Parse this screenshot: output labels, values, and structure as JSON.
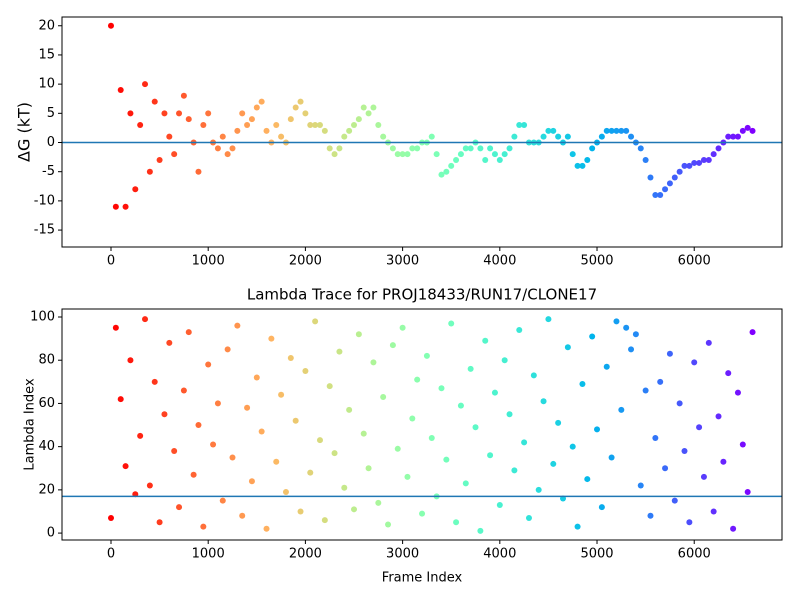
{
  "chart_data": [
    {
      "type": "scatter",
      "ylabel": "ΔG (kT)",
      "colormap": "rainbow_r",
      "x": [
        0,
        50,
        100,
        150,
        200,
        250,
        300,
        350,
        400,
        450,
        500,
        550,
        600,
        650,
        700,
        750,
        800,
        850,
        900,
        950,
        1000,
        1050,
        1100,
        1150,
        1200,
        1250,
        1300,
        1350,
        1400,
        1450,
        1500,
        1550,
        1600,
        1650,
        1700,
        1750,
        1800,
        1850,
        1900,
        1950,
        2000,
        2050,
        2100,
        2150,
        2200,
        2250,
        2300,
        2350,
        2400,
        2450,
        2500,
        2550,
        2600,
        2650,
        2700,
        2750,
        2800,
        2850,
        2900,
        2950,
        3000,
        3050,
        3100,
        3150,
        3200,
        3250,
        3300,
        3350,
        3400,
        3450,
        3500,
        3550,
        3600,
        3650,
        3700,
        3750,
        3800,
        3850,
        3900,
        3950,
        4000,
        4050,
        4100,
        4150,
        4200,
        4250,
        4300,
        4350,
        4400,
        4450,
        4500,
        4550,
        4600,
        4650,
        4700,
        4750,
        4800,
        4850,
        4900,
        4950,
        5000,
        5050,
        5100,
        5150,
        5200,
        5250,
        5300,
        5350,
        5400,
        5450,
        5500,
        5550,
        5600,
        5650,
        5700,
        5750,
        5800,
        5850,
        5900,
        5950,
        6000,
        6050,
        6100,
        6150,
        6200,
        6250,
        6300,
        6350,
        6400,
        6450,
        6500,
        6550,
        6600
      ],
      "values": [
        20,
        -11,
        9,
        -11,
        5,
        -8,
        3,
        10,
        -5,
        7,
        -3,
        5,
        1,
        -2,
        5,
        8,
        4,
        0,
        -5,
        3,
        5,
        0,
        -1,
        1,
        -2,
        -1,
        2,
        5,
        3,
        4,
        6,
        7,
        2,
        0,
        3,
        1,
        0,
        4,
        6,
        7,
        5,
        3,
        3,
        3,
        2,
        -1,
        -2,
        -1,
        1,
        2,
        3,
        4,
        6,
        5,
        6,
        3,
        1,
        0,
        -1,
        -2,
        -2,
        -2,
        -1,
        -1,
        0,
        0,
        1,
        -2,
        -5.5,
        -5,
        -4,
        -3,
        -2,
        -1,
        -1,
        0,
        -1,
        -3,
        -1,
        -2,
        -3,
        -2,
        -1,
        1,
        3,
        3,
        0,
        0,
        0,
        1,
        2,
        2,
        1,
        0,
        1,
        -2,
        -4,
        -4,
        -3,
        -1,
        0,
        1,
        2,
        2,
        2,
        2,
        2,
        1,
        0,
        -1,
        -3,
        -6,
        -9,
        -9,
        -8,
        -7,
        -6,
        -5,
        -4,
        -4,
        -3.5,
        -3.5,
        -3,
        -3,
        -2,
        -1,
        0,
        1,
        1,
        1,
        2,
        2.5,
        2
      ],
      "hline": 0,
      "hline_color": "#1f77b4",
      "xlim": [
        -504,
        6903
      ],
      "ylim": [
        -17.9,
        21.5
      ],
      "xticks": [
        0,
        1000,
        2000,
        3000,
        4000,
        5000,
        6000
      ],
      "yticks": [
        -15,
        -10,
        -5,
        0,
        5,
        10,
        15,
        20
      ]
    },
    {
      "type": "scatter",
      "title": "Lambda Trace for PROJ18433/RUN17/CLONE17",
      "xlabel": "Frame Index",
      "ylabel": "Lambda Index",
      "colormap": "rainbow_r",
      "x": [
        0,
        50,
        100,
        150,
        200,
        250,
        300,
        350,
        400,
        450,
        500,
        550,
        600,
        650,
        700,
        750,
        800,
        850,
        900,
        950,
        1000,
        1050,
        1100,
        1150,
        1200,
        1250,
        1300,
        1350,
        1400,
        1450,
        1500,
        1550,
        1600,
        1650,
        1700,
        1750,
        1800,
        1850,
        1900,
        1950,
        2000,
        2050,
        2100,
        2150,
        2200,
        2250,
        2300,
        2350,
        2400,
        2450,
        2500,
        2550,
        2600,
        2650,
        2700,
        2750,
        2800,
        2850,
        2900,
        2950,
        3000,
        3050,
        3100,
        3150,
        3200,
        3250,
        3300,
        3350,
        3400,
        3450,
        3500,
        3550,
        3600,
        3650,
        3700,
        3750,
        3800,
        3850,
        3900,
        3950,
        4000,
        4050,
        4100,
        4150,
        4200,
        4250,
        4300,
        4350,
        4400,
        4450,
        4500,
        4550,
        4600,
        4650,
        4700,
        4750,
        4800,
        4850,
        4900,
        4950,
        5000,
        5050,
        5100,
        5150,
        5200,
        5250,
        5300,
        5350,
        5400,
        5450,
        5500,
        5550,
        5600,
        5650,
        5700,
        5750,
        5800,
        5850,
        5900,
        5950,
        6000,
        6050,
        6100,
        6150,
        6200,
        6250,
        6300,
        6350,
        6400,
        6450,
        6500,
        6550,
        6600
      ],
      "values": [
        7,
        95,
        62,
        31,
        80,
        18,
        45,
        99,
        22,
        70,
        5,
        55,
        88,
        38,
        12,
        66,
        93,
        27,
        50,
        3,
        78,
        41,
        60,
        15,
        85,
        35,
        96,
        8,
        58,
        24,
        72,
        47,
        2,
        90,
        33,
        64,
        19,
        81,
        52,
        10,
        75,
        28,
        98,
        43,
        6,
        68,
        37,
        84,
        21,
        57,
        11,
        92,
        46,
        30,
        79,
        14,
        63,
        4,
        87,
        39,
        95,
        26,
        53,
        71,
        9,
        82,
        44,
        17,
        67,
        34,
        97,
        5,
        59,
        23,
        76,
        49,
        1,
        89,
        36,
        65,
        13,
        80,
        55,
        29,
        94,
        42,
        7,
        73,
        20,
        61,
        99,
        32,
        51,
        16,
        86,
        40,
        3,
        69,
        25,
        91,
        48,
        12,
        77,
        35,
        98,
        57,
        95,
        85,
        92,
        22,
        66,
        8,
        44,
        70,
        30,
        83,
        15,
        60,
        38,
        5,
        79,
        49,
        26,
        88,
        10,
        54,
        33,
        74,
        2,
        65,
        41,
        19,
        93
      ],
      "hline": 17,
      "hline_color": "#1f77b4",
      "xlim": [
        -504,
        6903
      ],
      "ylim": [
        -3.2,
        103.7
      ],
      "xticks": [
        0,
        1000,
        2000,
        3000,
        4000,
        5000,
        6000
      ],
      "yticks": [
        0,
        20,
        40,
        60,
        80,
        100
      ]
    }
  ]
}
